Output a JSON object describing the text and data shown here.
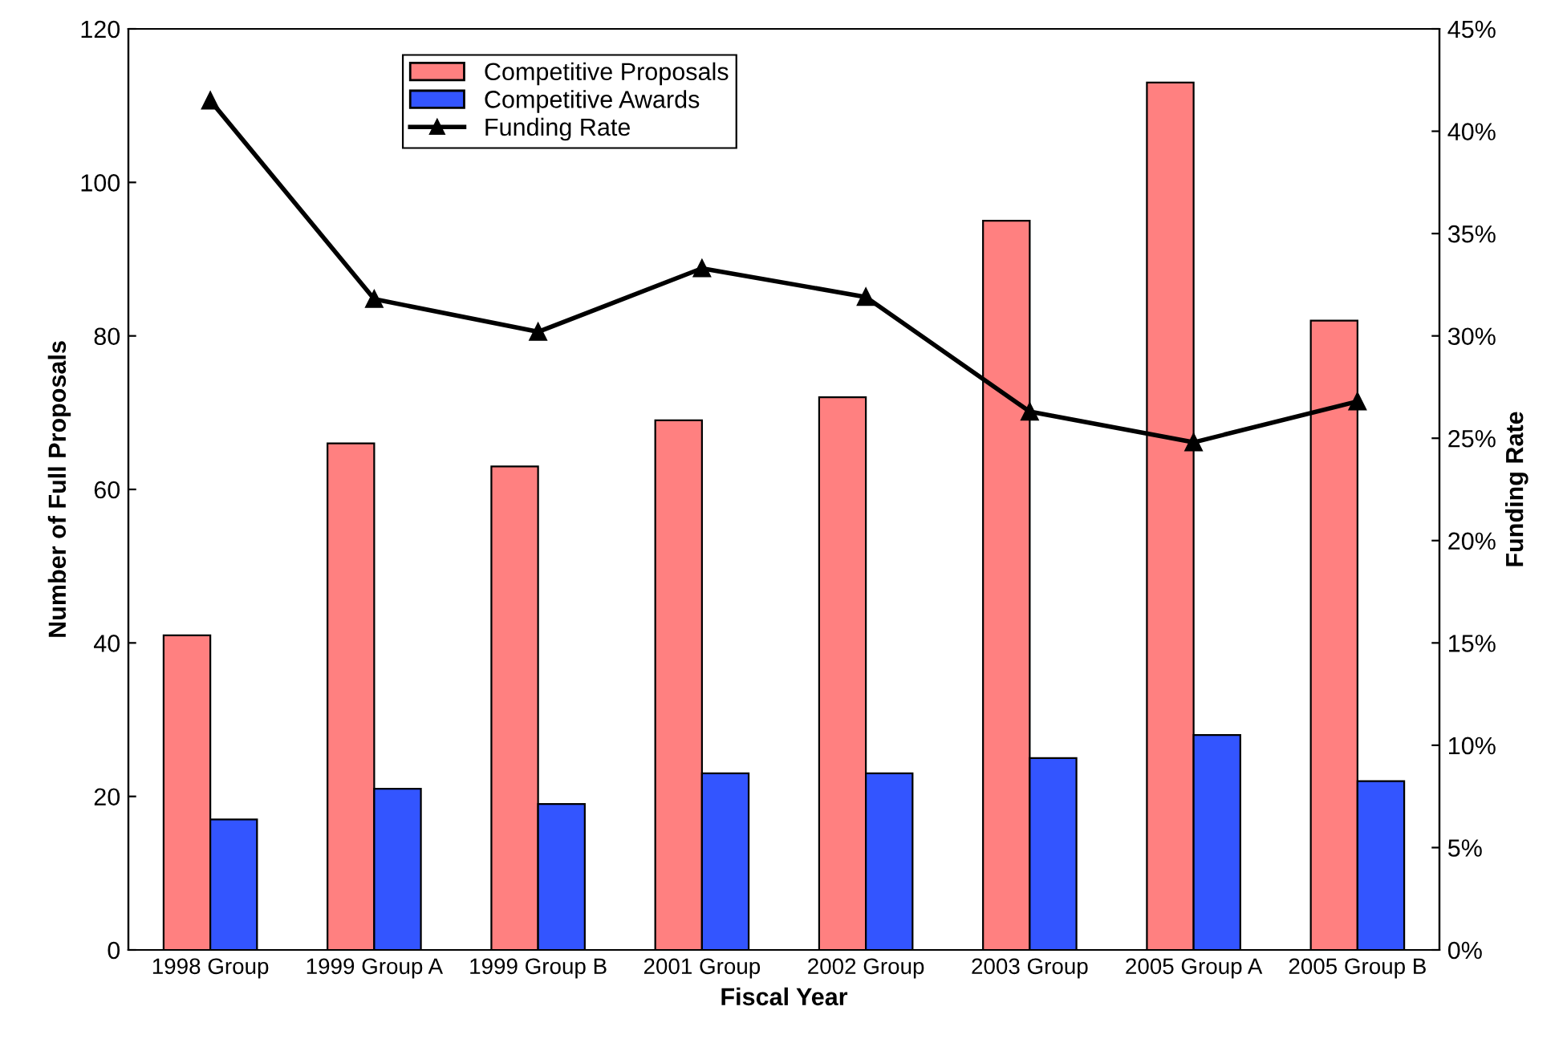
{
  "chart_data": {
    "type": "bar",
    "xlabel": "Fiscal Year",
    "ylabel": "Number of Full Proposals",
    "y2label": "Funding Rate",
    "categories": [
      "1998 Group",
      "1999 Group A",
      "1999 Group B",
      "2001 Group",
      "2002 Group",
      "2003 Group",
      "2005 Group A",
      "2005 Group B"
    ],
    "series": [
      {
        "name": "Competitive Proposals",
        "color": "#ff8080",
        "values": [
          41,
          66,
          63,
          69,
          72,
          95,
          113,
          82
        ]
      },
      {
        "name": "Competitive Awards",
        "color": "#3355ff",
        "values": [
          17,
          21,
          19,
          23,
          23,
          25,
          28,
          22
        ]
      },
      {
        "name": "Funding Rate",
        "type": "line",
        "axis": "y2",
        "color": "#000000",
        "marker": "triangle",
        "values": [
          41.5,
          31.8,
          30.2,
          33.3,
          31.9,
          26.3,
          24.8,
          26.8
        ]
      }
    ],
    "ylim": [
      0,
      120
    ],
    "yticks": [
      0,
      20,
      40,
      60,
      80,
      100,
      120
    ],
    "y2lim": [
      0,
      45
    ],
    "y2ticks": [
      {
        "value": 0,
        "label": "0%"
      },
      {
        "value": 5,
        "label": "5%"
      },
      {
        "value": 10,
        "label": "10%"
      },
      {
        "value": 15,
        "label": "15%"
      },
      {
        "value": 20,
        "label": "20%"
      },
      {
        "value": 25,
        "label": "25%"
      },
      {
        "value": 30,
        "label": "30%"
      },
      {
        "value": 35,
        "label": "35%"
      },
      {
        "value": 40,
        "label": "40%"
      },
      {
        "value": 45,
        "label": "45%"
      }
    ],
    "grid": false,
    "legend": "top left"
  }
}
